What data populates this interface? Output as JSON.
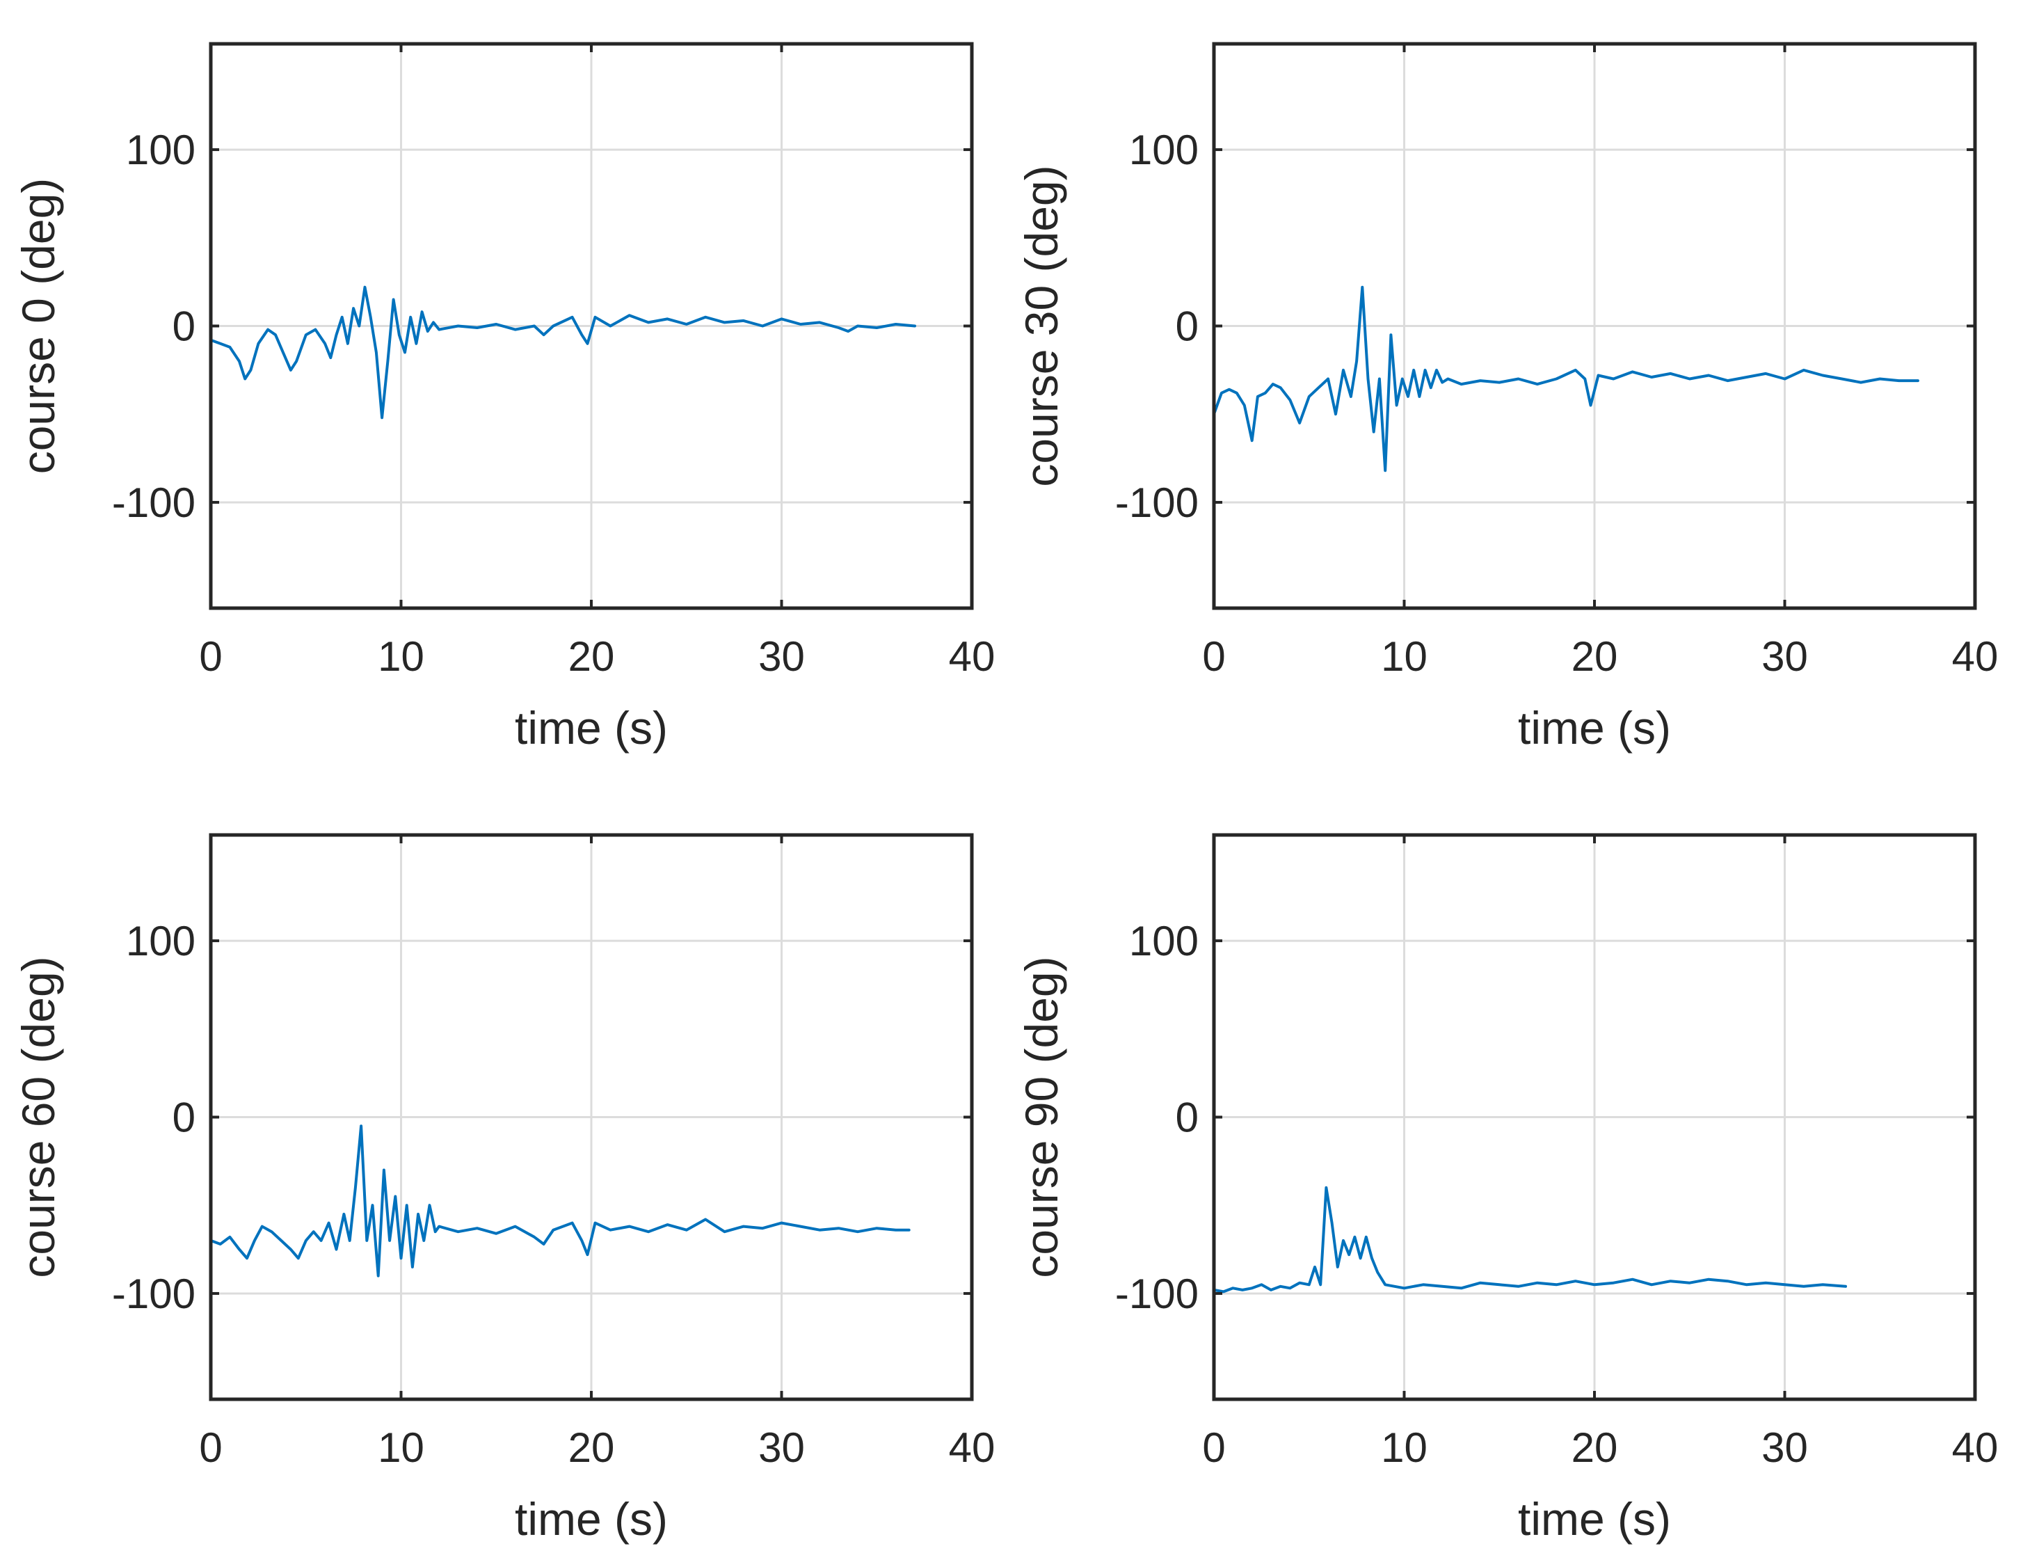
{
  "figure": {
    "background": "#ffffff",
    "line_color": "#0072bd",
    "grid_color": "#dcdcdc",
    "axis_color": "#262626"
  },
  "chart_data": [
    {
      "type": "line",
      "xlabel": "time (s)",
      "ylabel": "course 0 (deg)",
      "xlim": [
        0,
        40
      ],
      "ylim": [
        -160,
        160
      ],
      "xticks": [
        0,
        10,
        20,
        30,
        40
      ],
      "yticks": [
        -100,
        0,
        100
      ],
      "grid": true,
      "series": [
        {
          "name": "course 0",
          "x": [
            0,
            0.5,
            1,
            1.5,
            1.8,
            2.1,
            2.5,
            3,
            3.4,
            3.8,
            4.2,
            4.5,
            5,
            5.5,
            6,
            6.3,
            6.6,
            6.9,
            7.2,
            7.5,
            7.8,
            8.1,
            8.4,
            8.7,
            9,
            9.3,
            9.6,
            9.9,
            10.2,
            10.5,
            10.8,
            11.1,
            11.4,
            11.7,
            12,
            13,
            14,
            15,
            16,
            17,
            17.5,
            18,
            19,
            19.5,
            19.8,
            20.2,
            21,
            22,
            23,
            24,
            25,
            26,
            27,
            28,
            29,
            30,
            31,
            32,
            33,
            33.5,
            34,
            35,
            36,
            37
          ],
          "y": [
            -8,
            -10,
            -12,
            -20,
            -30,
            -25,
            -10,
            -2,
            -5,
            -15,
            -25,
            -20,
            -5,
            -2,
            -10,
            -18,
            -5,
            5,
            -10,
            10,
            0,
            22,
            5,
            -15,
            -52,
            -20,
            15,
            -5,
            -15,
            5,
            -10,
            8,
            -3,
            2,
            -2,
            0,
            -1,
            1,
            -2,
            0,
            -5,
            0,
            5,
            -5,
            -10,
            5,
            0,
            6,
            2,
            4,
            1,
            5,
            2,
            3,
            0,
            4,
            1,
            2,
            -1,
            -3,
            0,
            -1,
            1,
            0
          ]
        }
      ]
    },
    {
      "type": "line",
      "xlabel": "time (s)",
      "ylabel": "course 30 (deg)",
      "xlim": [
        0,
        40
      ],
      "ylim": [
        -160,
        160
      ],
      "xticks": [
        0,
        10,
        20,
        30,
        40
      ],
      "yticks": [
        -100,
        0,
        100
      ],
      "grid": true,
      "series": [
        {
          "name": "course 30",
          "x": [
            0,
            0.4,
            0.8,
            1.2,
            1.6,
            2,
            2.3,
            2.7,
            3.1,
            3.5,
            4,
            4.5,
            5,
            5.5,
            6,
            6.4,
            6.8,
            7.2,
            7.5,
            7.8,
            8.1,
            8.4,
            8.7,
            9,
            9.3,
            9.6,
            9.9,
            10.2,
            10.5,
            10.8,
            11.1,
            11.4,
            11.7,
            12,
            12.3,
            13,
            14,
            15,
            16,
            17,
            18,
            19,
            19.5,
            19.8,
            20.2,
            21,
            22,
            23,
            24,
            25,
            26,
            27,
            28,
            29,
            30,
            31,
            32,
            33,
            34,
            35,
            36,
            37
          ],
          "y": [
            -50,
            -38,
            -36,
            -38,
            -45,
            -65,
            -40,
            -38,
            -33,
            -35,
            -42,
            -55,
            -40,
            -35,
            -30,
            -50,
            -25,
            -40,
            -20,
            22,
            -30,
            -60,
            -30,
            -82,
            -5,
            -45,
            -30,
            -40,
            -25,
            -40,
            -25,
            -35,
            -25,
            -32,
            -30,
            -33,
            -31,
            -32,
            -30,
            -33,
            -30,
            -25,
            -30,
            -45,
            -28,
            -30,
            -26,
            -29,
            -27,
            -30,
            -28,
            -31,
            -29,
            -27,
            -30,
            -25,
            -28,
            -30,
            -32,
            -30,
            -31,
            -31
          ]
        }
      ]
    },
    {
      "type": "line",
      "xlabel": "time (s)",
      "ylabel": "course 60 (deg)",
      "xlim": [
        0,
        40
      ],
      "ylim": [
        -160,
        160
      ],
      "xticks": [
        0,
        10,
        20,
        30,
        40
      ],
      "yticks": [
        -100,
        0,
        100
      ],
      "grid": true,
      "series": [
        {
          "name": "course 60",
          "x": [
            0,
            0.5,
            1,
            1.5,
            1.9,
            2.3,
            2.7,
            3.2,
            3.7,
            4.2,
            4.6,
            5,
            5.4,
            5.8,
            6.2,
            6.6,
            7,
            7.3,
            7.6,
            7.9,
            8.2,
            8.5,
            8.8,
            9.1,
            9.4,
            9.7,
            10,
            10.3,
            10.6,
            10.9,
            11.2,
            11.5,
            11.8,
            12,
            13,
            14,
            15,
            16,
            17,
            17.5,
            18,
            19,
            19.5,
            19.8,
            20.2,
            21,
            22,
            23,
            24,
            25,
            26,
            27,
            28,
            29,
            30,
            31,
            32,
            33,
            34,
            35,
            36,
            36.7
          ],
          "y": [
            -70,
            -72,
            -68,
            -75,
            -80,
            -70,
            -62,
            -65,
            -70,
            -75,
            -80,
            -70,
            -65,
            -70,
            -60,
            -75,
            -55,
            -70,
            -40,
            -5,
            -70,
            -50,
            -90,
            -30,
            -70,
            -45,
            -80,
            -50,
            -85,
            -55,
            -70,
            -50,
            -65,
            -62,
            -65,
            -63,
            -66,
            -62,
            -68,
            -72,
            -64,
            -60,
            -70,
            -78,
            -60,
            -64,
            -62,
            -65,
            -61,
            -64,
            -58,
            -65,
            -62,
            -63,
            -60,
            -62,
            -64,
            -63,
            -65,
            -63,
            -64,
            -64
          ]
        }
      ]
    },
    {
      "type": "line",
      "xlabel": "time (s)",
      "ylabel": "course 90 (deg)",
      "xlim": [
        0,
        40
      ],
      "ylim": [
        -160,
        160
      ],
      "xticks": [
        0,
        10,
        20,
        30,
        40
      ],
      "yticks": [
        -100,
        0,
        100
      ],
      "grid": true,
      "series": [
        {
          "name": "course 90",
          "x": [
            0,
            0.5,
            1,
            1.5,
            2,
            2.5,
            3,
            3.5,
            4,
            4.5,
            5,
            5.3,
            5.6,
            5.9,
            6.2,
            6.5,
            6.8,
            7.1,
            7.4,
            7.7,
            8,
            8.3,
            8.6,
            9,
            9.5,
            10,
            11,
            12,
            13,
            14,
            15,
            16,
            17,
            18,
            19,
            20,
            21,
            22,
            23,
            24,
            25,
            26,
            27,
            28,
            29,
            30,
            31,
            32,
            33.2
          ],
          "y": [
            -98,
            -99,
            -97,
            -98,
            -97,
            -95,
            -98,
            -96,
            -97,
            -94,
            -95,
            -85,
            -95,
            -40,
            -60,
            -85,
            -70,
            -78,
            -68,
            -80,
            -68,
            -80,
            -88,
            -95,
            -96,
            -97,
            -95,
            -96,
            -97,
            -94,
            -95,
            -96,
            -94,
            -95,
            -93,
            -95,
            -94,
            -92,
            -95,
            -93,
            -94,
            -92,
            -93,
            -95,
            -94,
            -95,
            -96,
            -95,
            -96
          ]
        }
      ]
    }
  ]
}
